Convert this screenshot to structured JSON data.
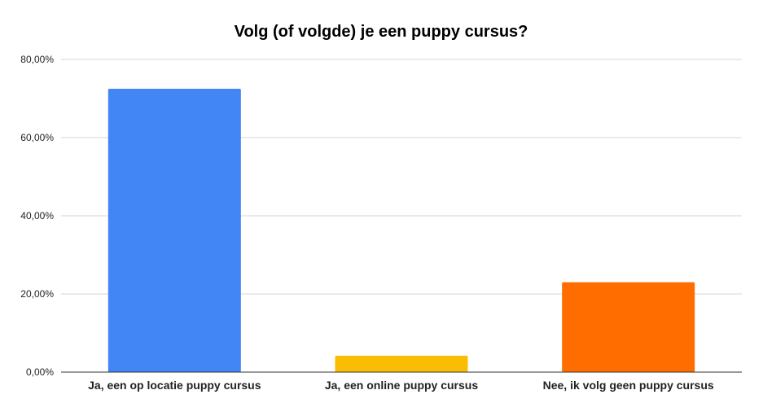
{
  "chart_data": {
    "type": "bar",
    "title": "Volg (of volgde) je een puppy cursus?",
    "xlabel": "",
    "ylabel": "",
    "categories": [
      "Ja, een op locatie puppy cursus",
      "Ja, een online puppy cursus",
      "Nee, ik volg geen puppy cursus"
    ],
    "values": [
      72.5,
      4.2,
      23.0
    ],
    "colors": [
      "#4285f4",
      "#fbbc04",
      "#ff6d01"
    ],
    "ylim": [
      0,
      80
    ],
    "yticks": [
      0,
      20,
      40,
      60,
      80
    ],
    "ytick_labels": [
      "0,00%",
      "20,00%",
      "40,00%",
      "60,00%",
      "80,00%"
    ],
    "grid": true,
    "legend": "none"
  }
}
